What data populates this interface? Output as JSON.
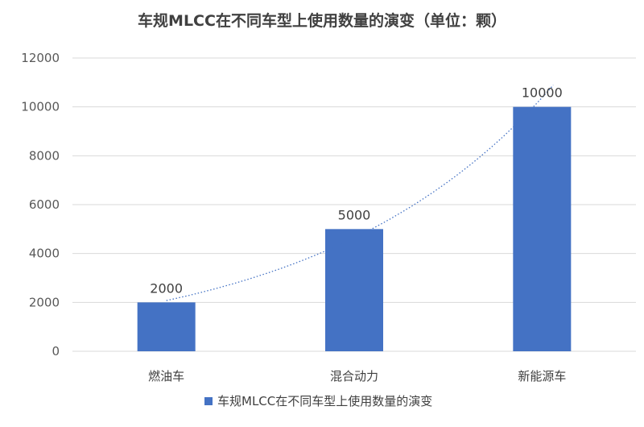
{
  "chart_data": {
    "type": "bar",
    "title": "车规MLCC在不同车型上使用数量的演变（单位：颗）",
    "categories": [
      "燃油车",
      "混合动力",
      "新能源车"
    ],
    "series": [
      {
        "name": "车规MLCC在不同车型上使用数量的演变",
        "values": [
          2000,
          5000,
          10000
        ],
        "color": "#4472C4"
      }
    ],
    "data_labels": [
      "2000",
      "5000",
      "10000"
    ],
    "ylim": [
      0,
      12000
    ],
    "yticks": [
      "0",
      "2000",
      "4000",
      "6000",
      "8000",
      "10000",
      "12000"
    ],
    "grid": true,
    "legend": "bottom",
    "trendline": "exponential",
    "trendline_color": "#4472C4"
  }
}
